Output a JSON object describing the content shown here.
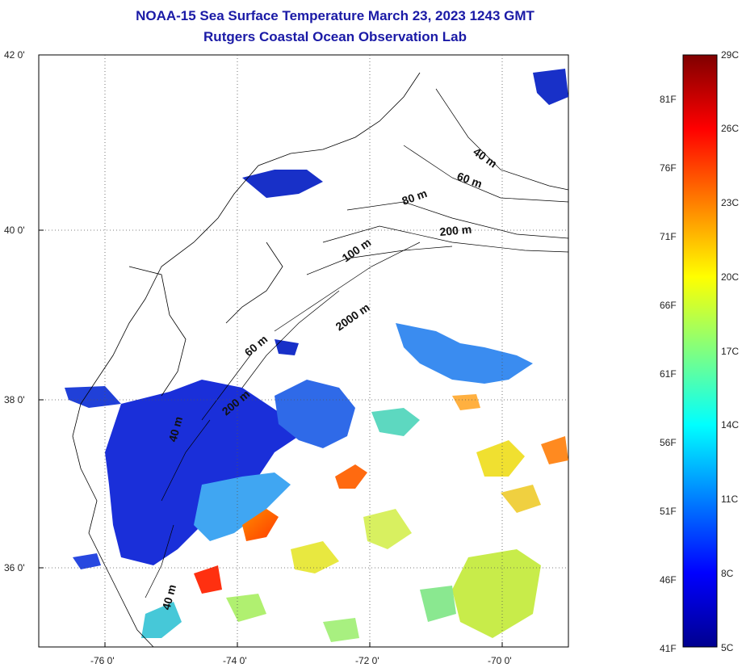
{
  "title": {
    "line1": "NOAA-15 Sea Surface Temperature March 23, 2023 1243 GMT",
    "line2": "Rutgers Coastal Ocean Observation Lab"
  },
  "map": {
    "lat_ticks": [
      "42 0'",
      "40 0'",
      "38 0'",
      "36 0'"
    ],
    "lon_ticks": [
      "-76 0'",
      "-74 0'",
      "-72 0'",
      "-70 0'"
    ],
    "lat_range": [
      35.0,
      42.0
    ],
    "lon_range": [
      -77.0,
      -69.0
    ],
    "isobath_labels": [
      "40 m",
      "60 m",
      "80 m",
      "200 m",
      "100 m",
      "2000 m",
      "60 m",
      "200 m",
      "40 m",
      "40 m"
    ]
  },
  "colorbar": {
    "celsius_ticks": [
      "29C",
      "26C",
      "23C",
      "20C",
      "17C",
      "14C",
      "11C",
      "8C",
      "5C"
    ],
    "fahrenheit_ticks": [
      "81F",
      "76F",
      "71F",
      "66F",
      "61F",
      "56F",
      "51F",
      "46F",
      "41F"
    ],
    "range_c": [
      5,
      29
    ],
    "colors": [
      "#00008f",
      "#0000ff",
      "#0080ff",
      "#00ffff",
      "#80ff80",
      "#ffff00",
      "#ff8000",
      "#ff0000",
      "#800000"
    ]
  }
}
